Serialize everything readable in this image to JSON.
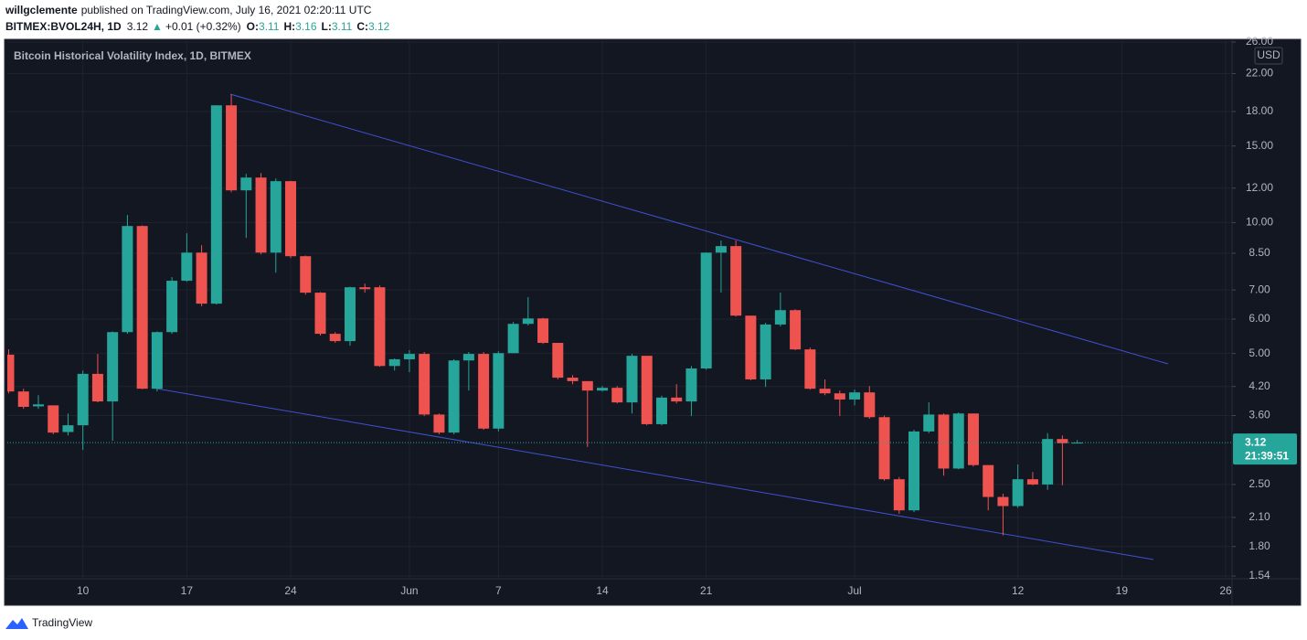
{
  "header": {
    "publisher": "willgclemente",
    "published": "published on TradingView.com, July 16, 2021 02:20:11 UTC",
    "symbol": "BITMEX:BVOL24H, 1D",
    "last": "3.12",
    "change_arrow": "▲",
    "change": "+0.01 (+0.32%)",
    "ohlc": [
      {
        "label": "O:",
        "value": "3.11"
      },
      {
        "label": "H:",
        "value": "3.16"
      },
      {
        "label": "L:",
        "value": "3.11"
      },
      {
        "label": "C:",
        "value": "3.12"
      }
    ]
  },
  "chart_data": {
    "type": "candlestick",
    "title": "Bitcoin Historical Volatility Index, 1D, BITMEX",
    "currency": "USD",
    "countdown": "21:39:51",
    "x": [
      "2021-05-05",
      "2021-05-06",
      "2021-05-07",
      "2021-05-08",
      "2021-05-09",
      "2021-05-10",
      "2021-05-11",
      "2021-05-12",
      "2021-05-13",
      "2021-05-14",
      "2021-05-15",
      "2021-05-16",
      "2021-05-17",
      "2021-05-18",
      "2021-05-19",
      "2021-05-20",
      "2021-05-21",
      "2021-05-22",
      "2021-05-23",
      "2021-05-24",
      "2021-05-25",
      "2021-05-26",
      "2021-05-27",
      "2021-05-28",
      "2021-05-29",
      "2021-05-30",
      "2021-05-31",
      "2021-06-01",
      "2021-06-02",
      "2021-06-03",
      "2021-06-04",
      "2021-06-05",
      "2021-06-06",
      "2021-06-07",
      "2021-06-08",
      "2021-06-09",
      "2021-06-10",
      "2021-06-11",
      "2021-06-12",
      "2021-06-13",
      "2021-06-14",
      "2021-06-15",
      "2021-06-16",
      "2021-06-17",
      "2021-06-18",
      "2021-06-19",
      "2021-06-20",
      "2021-06-21",
      "2021-06-22",
      "2021-06-23",
      "2021-06-24",
      "2021-06-25",
      "2021-06-26",
      "2021-06-27",
      "2021-06-28",
      "2021-06-29",
      "2021-06-30",
      "2021-07-01",
      "2021-07-02",
      "2021-07-03",
      "2021-07-04",
      "2021-07-05",
      "2021-07-06",
      "2021-07-07",
      "2021-07-08",
      "2021-07-09",
      "2021-07-10",
      "2021-07-11",
      "2021-07-12",
      "2021-07-13",
      "2021-07-14",
      "2021-07-15",
      "2021-07-16"
    ],
    "open": [
      4.97,
      4.09,
      3.78,
      3.8,
      3.3,
      3.42,
      4.49,
      3.88,
      5.6,
      9.82,
      4.15,
      5.6,
      7.35,
      8.53,
      6.51,
      18.6,
      11.86,
      12.69,
      8.53,
      12.45,
      8.37,
      6.9,
      5.55,
      5.34,
      7.1,
      7.1,
      4.68,
      4.85,
      4.99,
      3.62,
      3.29,
      4.82,
      4.99,
      3.36,
      5.01,
      5.85,
      6.02,
      5.29,
      4.4,
      4.32,
      4.11,
      4.17,
      3.86,
      4.94,
      3.44,
      3.96,
      3.88,
      4.62,
      8.53,
      8.83,
      6.11,
      4.36,
      5.83,
      6.29,
      5.11,
      4.15,
      4.05,
      3.92,
      4.07,
      3.57,
      2.57,
      2.18,
      3.31,
      3.62,
      2.72,
      3.64,
      2.77,
      2.34,
      2.23,
      2.57,
      2.5,
      3.18,
      3.11
    ],
    "high": [
      5.11,
      4.15,
      4.01,
      3.8,
      3.64,
      4.57,
      4.99,
      5.62,
      10.41,
      9.85,
      5.62,
      7.49,
      9.45,
      8.87,
      18.62,
      19.71,
      12.94,
      13.0,
      12.63,
      12.47,
      8.4,
      6.92,
      5.6,
      7.12,
      7.24,
      7.17,
      4.87,
      5.09,
      5.04,
      3.64,
      4.85,
      5.04,
      5.04,
      5.06,
      5.91,
      6.74,
      6.04,
      5.29,
      4.46,
      4.32,
      4.21,
      4.21,
      4.99,
      4.94,
      4.0,
      4.25,
      4.68,
      8.53,
      9.09,
      9.09,
      6.11,
      5.88,
      6.9,
      6.32,
      5.16,
      4.36,
      4.11,
      4.13,
      4.21,
      3.6,
      2.6,
      3.34,
      3.86,
      3.64,
      3.66,
      3.64,
      2.77,
      2.38,
      2.78,
      2.67,
      3.28,
      3.24,
      3.16
    ],
    "low": [
      4.05,
      3.73,
      3.73,
      3.26,
      3.24,
      3.0,
      3.86,
      3.15,
      5.55,
      4.14,
      4.09,
      5.55,
      7.31,
      6.42,
      6.48,
      11.74,
      9.22,
      8.45,
      7.67,
      8.29,
      6.83,
      5.5,
      5.29,
      5.21,
      6.9,
      4.66,
      4.57,
      4.53,
      3.59,
      3.26,
      3.26,
      4.11,
      3.34,
      3.31,
      5.01,
      5.8,
      5.26,
      4.36,
      4.25,
      3.05,
      4.09,
      3.84,
      3.64,
      3.42,
      3.42,
      3.84,
      3.59,
      4.59,
      6.9,
      6.08,
      4.34,
      4.19,
      5.77,
      5.09,
      4.13,
      4.01,
      3.59,
      3.8,
      3.54,
      2.55,
      2.14,
      2.16,
      3.28,
      2.62,
      2.71,
      2.75,
      2.18,
      1.91,
      2.21,
      2.49,
      2.43,
      2.49,
      3.11
    ],
    "close": [
      4.09,
      3.77,
      3.82,
      3.29,
      3.42,
      4.49,
      3.88,
      5.6,
      9.82,
      4.15,
      5.6,
      7.35,
      8.53,
      6.51,
      18.6,
      11.86,
      12.69,
      8.53,
      12.45,
      8.37,
      6.9,
      5.55,
      5.34,
      7.1,
      7.03,
      4.68,
      4.85,
      4.99,
      3.62,
      3.29,
      4.82,
      4.99,
      3.36,
      5.01,
      5.85,
      6.02,
      5.29,
      4.4,
      4.32,
      4.11,
      4.17,
      3.86,
      4.94,
      3.44,
      3.96,
      3.88,
      4.62,
      8.53,
      8.83,
      6.11,
      4.36,
      5.83,
      6.29,
      5.11,
      4.15,
      4.05,
      3.92,
      4.07,
      3.57,
      2.57,
      2.18,
      3.31,
      3.62,
      2.72,
      3.64,
      2.77,
      2.34,
      2.23,
      2.57,
      2.5,
      3.18,
      3.11,
      3.12
    ],
    "up_color": "#26a69a",
    "down_color": "#ef5350",
    "log_scale": true,
    "grid": true,
    "xlim": [
      "2021-05-05",
      "2021-07-26"
    ],
    "xticks": [
      {
        "value": "2021-05-10",
        "label": "10"
      },
      {
        "value": "2021-05-17",
        "label": "17"
      },
      {
        "value": "2021-05-24",
        "label": "24"
      },
      {
        "value": "2021-06-01",
        "label": "Jun"
      },
      {
        "value": "2021-06-07",
        "label": "7"
      },
      {
        "value": "2021-06-14",
        "label": "14"
      },
      {
        "value": "2021-06-21",
        "label": "21"
      },
      {
        "value": "2021-07-01",
        "label": "Jul"
      },
      {
        "value": "2021-07-12",
        "label": "12"
      },
      {
        "value": "2021-07-19",
        "label": "19"
      },
      {
        "value": "2021-07-26",
        "label": "26"
      }
    ],
    "ylim": [
      1.54,
      26
    ],
    "yticks": [
      {
        "value": 26,
        "label": "26.00"
      },
      {
        "value": 22,
        "label": "22.00"
      },
      {
        "value": 18,
        "label": "18.00"
      },
      {
        "value": 15,
        "label": "15.00"
      },
      {
        "value": 12,
        "label": "12.00"
      },
      {
        "value": 10,
        "label": "10.00"
      },
      {
        "value": 8.5,
        "label": "8.50"
      },
      {
        "value": 7,
        "label": "7.00"
      },
      {
        "value": 6,
        "label": "6.00"
      },
      {
        "value": 5,
        "label": "5.00"
      },
      {
        "value": 4.2,
        "label": "4.20"
      },
      {
        "value": 3.6,
        "label": "3.60"
      },
      {
        "value": 2.5,
        "label": "2.50"
      },
      {
        "value": 2.1,
        "label": "2.10"
      },
      {
        "value": 1.8,
        "label": "1.80"
      },
      {
        "value": 1.54,
        "label": "1.54"
      }
    ]
  },
  "footer": {
    "brand": "TradingView"
  }
}
